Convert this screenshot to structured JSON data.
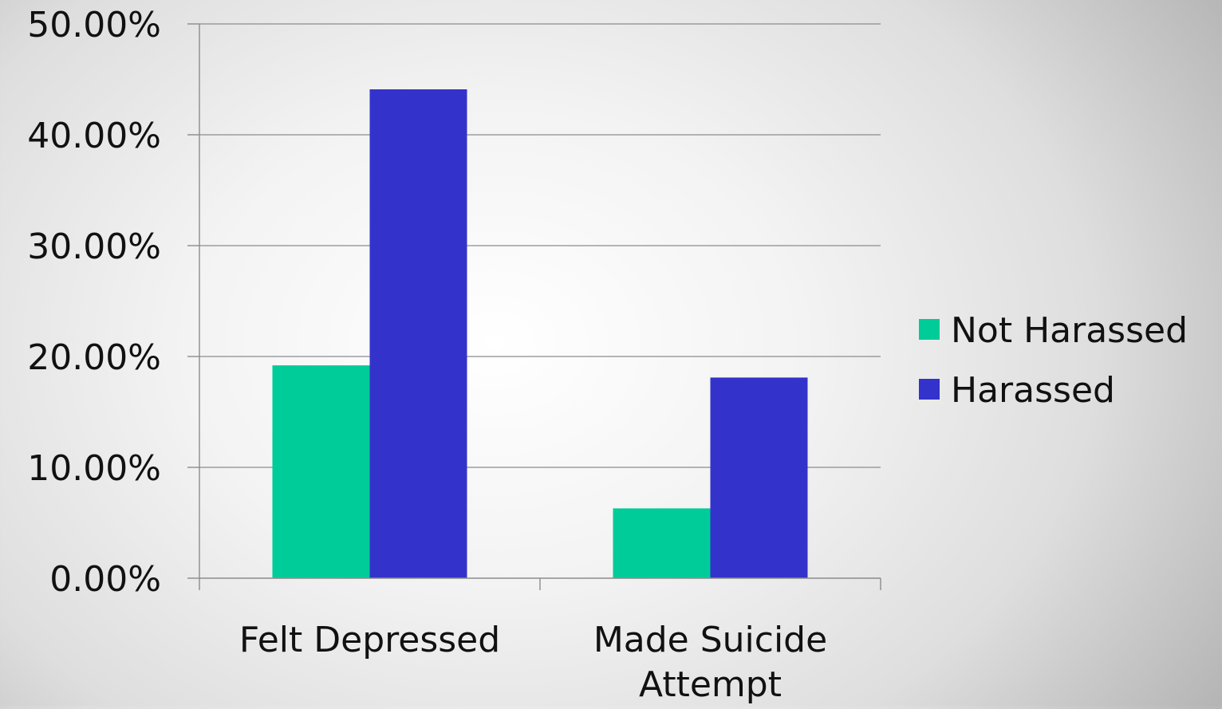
{
  "chart_data": {
    "type": "bar",
    "title": "",
    "xlabel": "",
    "ylabel": "",
    "categories": [
      "Felt  Depressed",
      "Made Suicide Attempt"
    ],
    "series": [
      {
        "name": "Not Harassed",
        "color": "#00cc99",
        "values": [
          19.2,
          6.3
        ]
      },
      {
        "name": "Harassed",
        "color": "#3333cc",
        "values": [
          44.1,
          18.1
        ]
      }
    ],
    "ylim": [
      0,
      50
    ],
    "yticks": [
      0,
      10,
      20,
      30,
      40,
      50
    ],
    "ytick_labels": [
      "0.00%",
      "10.00%",
      "20.00%",
      "30.00%",
      "40.00%",
      "50.00%"
    ],
    "grid": true,
    "legend_position": "right"
  }
}
